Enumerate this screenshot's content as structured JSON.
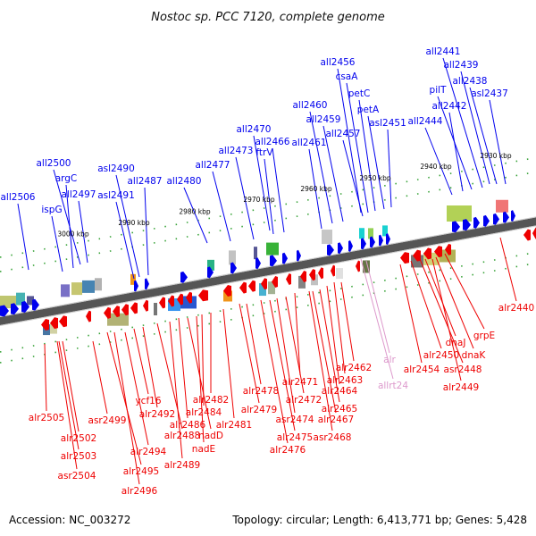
{
  "title": "Nostoc sp. PCC 7120, complete genome",
  "footer": {
    "accession": "Accession: NC_003272",
    "summary": "Topology: circular; Length: 6,413,771 bp; Genes: 5,428"
  },
  "colors": {
    "forward": "#0000ee",
    "reverse": "#ee0000",
    "rna": "#dd99cc",
    "backbone": "#555555",
    "tick": "#229922"
  },
  "ticks": [
    "3000 kbp",
    "2990 kbp",
    "2980 kbp",
    "2970 kbp",
    "2960 kbp",
    "2950 kbp",
    "2940 kbp",
    "2930 kbp"
  ],
  "forward_labels": [
    "all2506",
    "ispG",
    "argC",
    "all2500",
    "all2497",
    "asl2491",
    "asl2490",
    "all2487",
    "all2480",
    "all2477",
    "all2473",
    "all2470",
    "ftrV",
    "all2466",
    "all2461",
    "all2460",
    "all2459",
    "all2457",
    "all2456",
    "csaA",
    "petC",
    "petA",
    "asl2451",
    "all2444",
    "all2442",
    "pilT",
    "all2441",
    "all2439",
    "all2438",
    "asl2437"
  ],
  "reverse_labels": [
    "alr2505",
    "alr2502",
    "alr2503",
    "asr2504",
    "asr2499",
    "alr2495",
    "alr2496",
    "alr2494",
    "ycf16",
    "alr2492",
    "alr2488",
    "alr2489",
    "alr2486",
    "nadD",
    "nadE",
    "alr2484",
    "alr2482",
    "alr2481",
    "alr2479",
    "alr2478",
    "alr2476",
    "alr2475",
    "asr2474",
    "alr2472",
    "alr2471",
    "asr2468",
    "alr2467",
    "alr2465",
    "alr2464",
    "alr2463",
    "alr2462",
    "alr2454",
    "alr2450",
    "asr2448",
    "dnaJ",
    "dnaK",
    "grpE",
    "alr2449",
    "alr2440"
  ],
  "rna_labels": [
    "alr",
    "allrt24"
  ]
}
